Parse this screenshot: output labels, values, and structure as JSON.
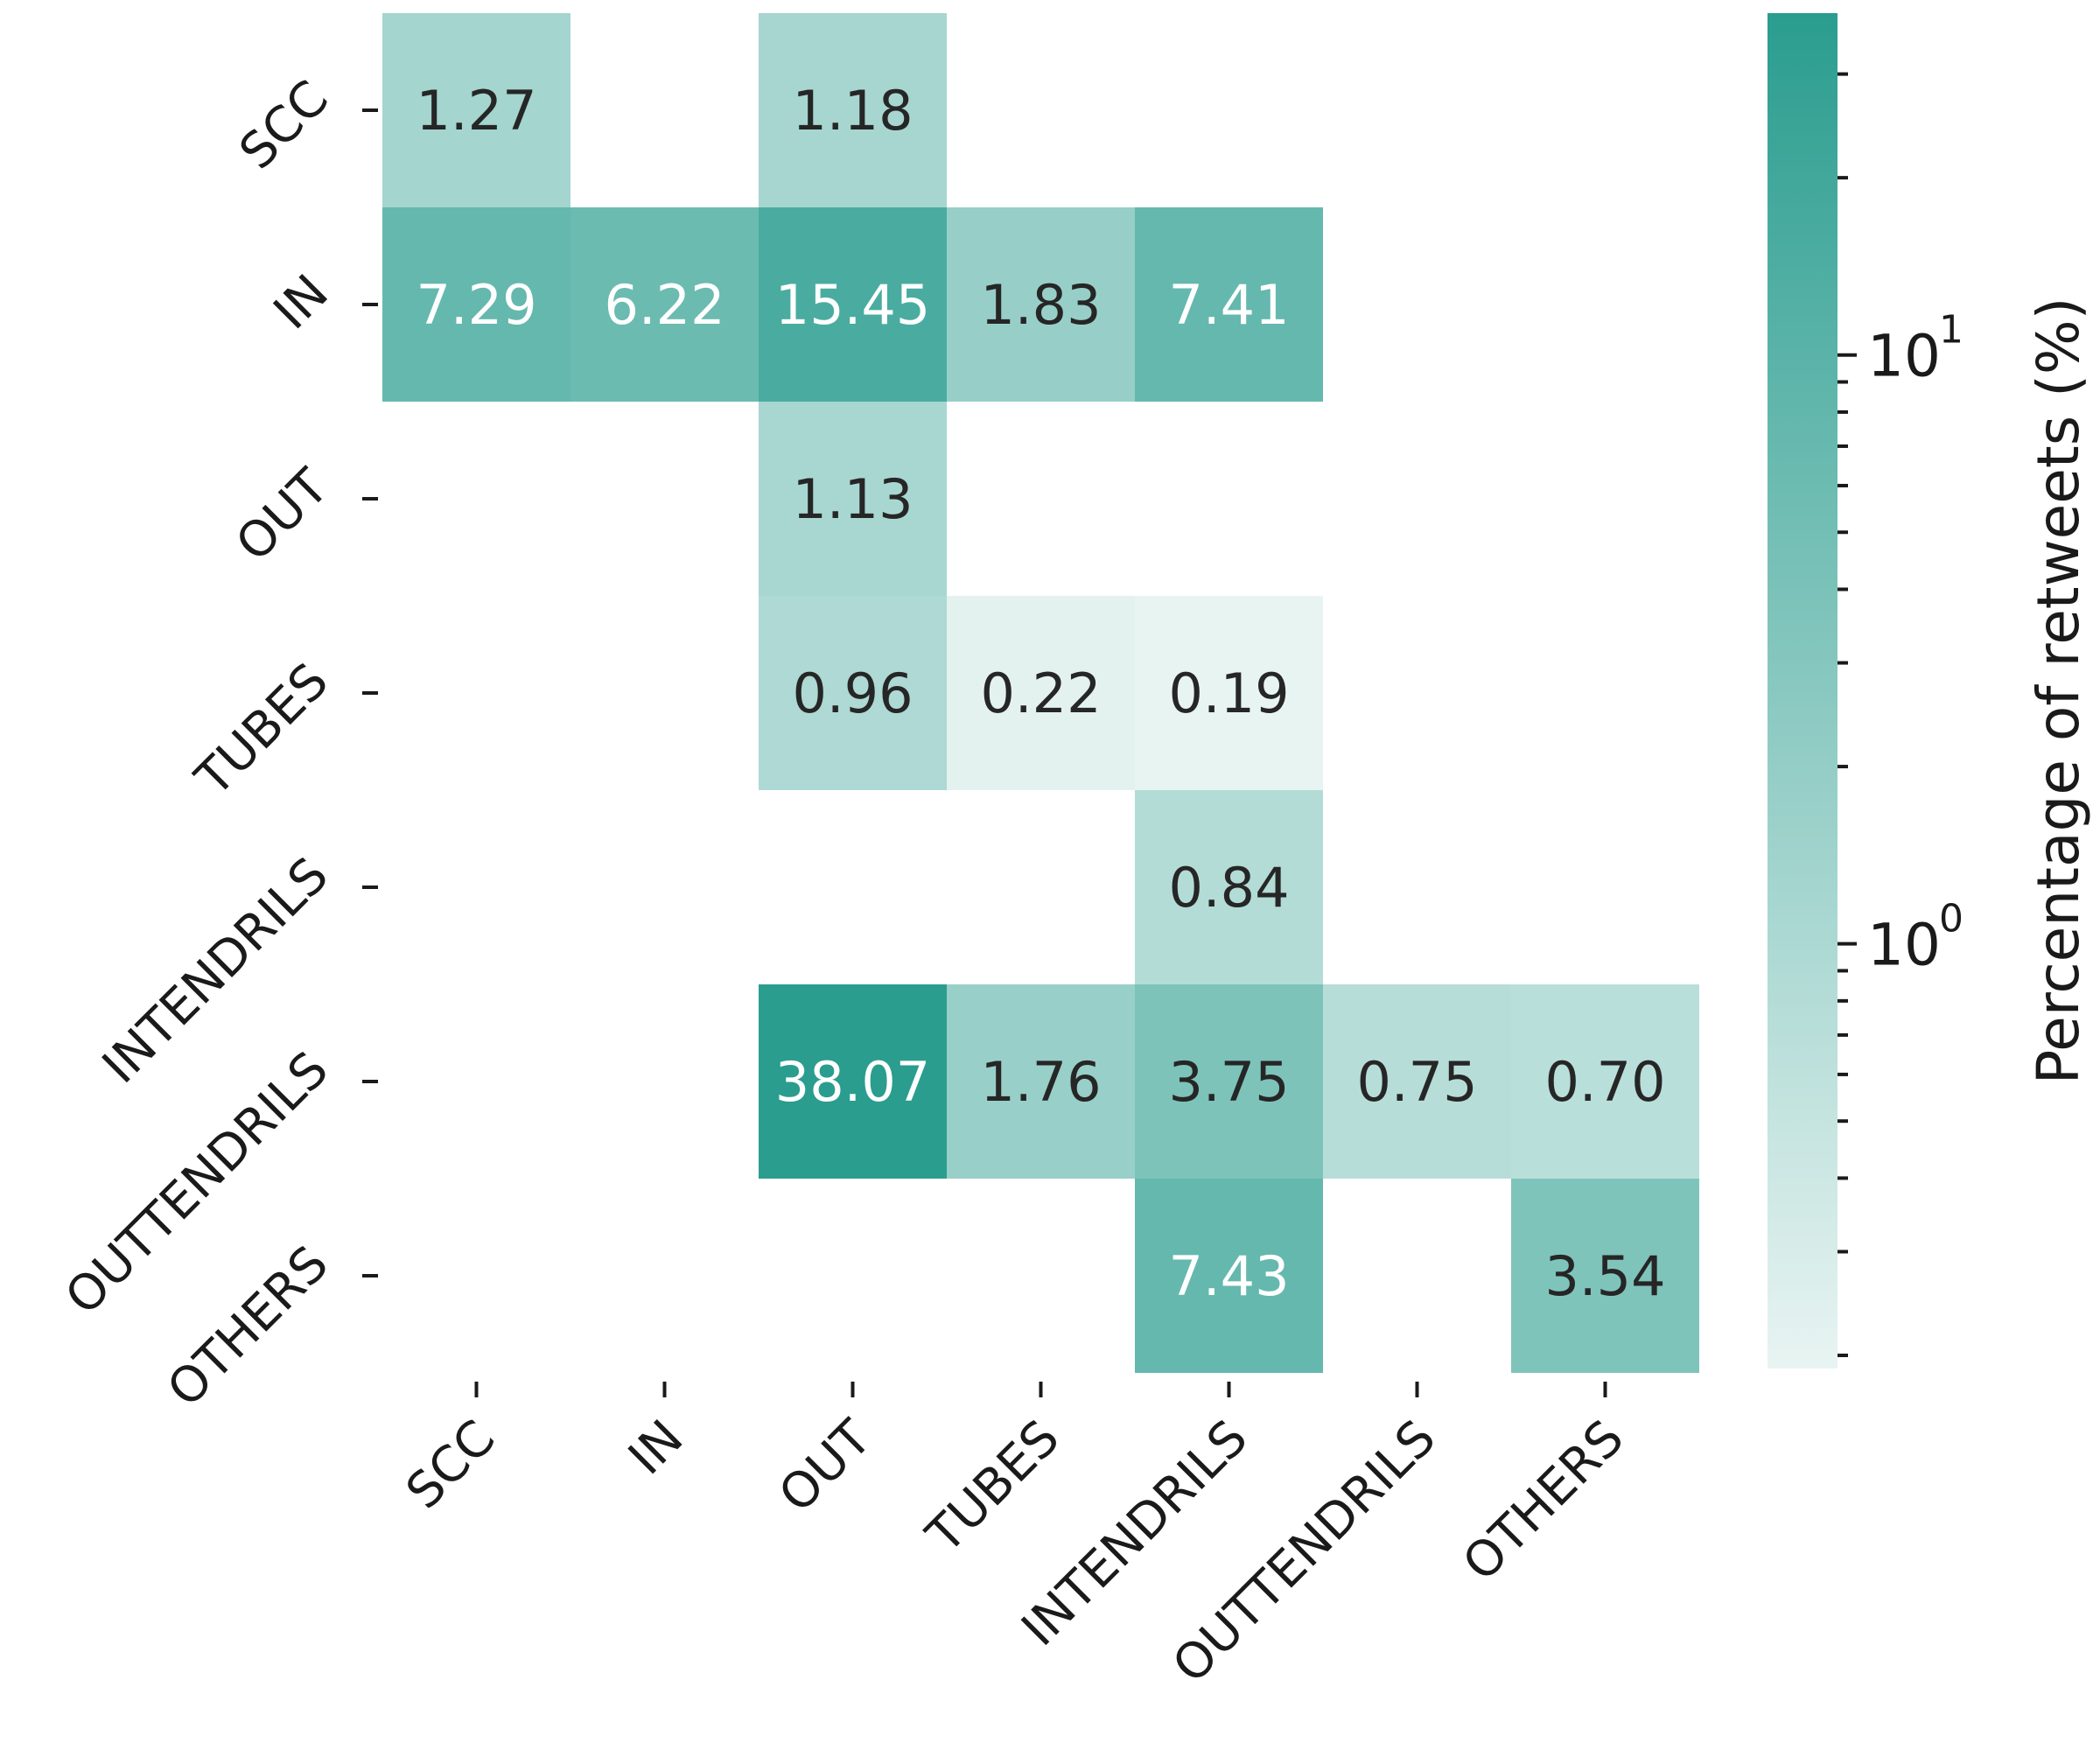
{
  "chart_data": {
    "type": "heatmap",
    "rows": [
      "SCC",
      "IN",
      "OUT",
      "TUBES",
      "INTENDRILS",
      "OUTTENDRILS",
      "OTHERS"
    ],
    "columns": [
      "SCC",
      "IN",
      "OUT",
      "TUBES",
      "INTENDRILS",
      "OUTTENDRILS",
      "OTHERS"
    ],
    "values": [
      [
        1.27,
        null,
        1.18,
        null,
        null,
        null,
        null
      ],
      [
        7.29,
        6.22,
        15.45,
        1.83,
        7.41,
        null,
        null
      ],
      [
        null,
        null,
        1.13,
        null,
        null,
        null,
        null
      ],
      [
        null,
        null,
        0.96,
        0.22,
        0.19,
        null,
        null
      ],
      [
        null,
        null,
        null,
        null,
        0.84,
        null,
        null
      ],
      [
        null,
        null,
        38.07,
        1.76,
        3.75,
        0.75,
        0.7
      ],
      [
        null,
        null,
        null,
        null,
        7.43,
        null,
        3.54
      ]
    ],
    "cell_labels": [
      [
        "1.27",
        "",
        "1.18",
        "",
        "",
        "",
        ""
      ],
      [
        "7.29",
        "6.22",
        "15.45",
        "1.83",
        "7.41",
        "",
        ""
      ],
      [
        "",
        "",
        "1.13",
        "",
        "",
        "",
        ""
      ],
      [
        "",
        "",
        "0.96",
        "0.22",
        "0.19",
        "",
        ""
      ],
      [
        "",
        "",
        "",
        "",
        "0.84",
        "",
        ""
      ],
      [
        "",
        "",
        "38.07",
        "1.76",
        "3.75",
        "0.75",
        "0.70"
      ],
      [
        "",
        "",
        "",
        "",
        "7.43",
        "",
        "3.54"
      ]
    ],
    "colorbar": {
      "label": "Percentage of retweets (%)",
      "scale": "log",
      "range": [
        0.19,
        38.07
      ],
      "tick_labels": [
        {
          "value": 1,
          "base": "10",
          "exp": "0"
        },
        {
          "value": 10,
          "base": "10",
          "exp": "1"
        }
      ],
      "color_low": "#e8f4f2",
      "color_high": "#2a9d8f"
    },
    "xlabel": "",
    "ylabel": ""
  }
}
